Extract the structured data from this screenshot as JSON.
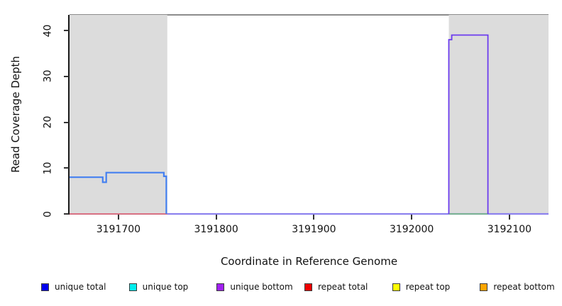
{
  "chart_data": {
    "type": "line",
    "title": "",
    "xlabel": "Coordinate in Reference Genome",
    "ylabel": "Read Coverage Depth",
    "xlim": [
      3191650,
      3192140
    ],
    "ylim": [
      0,
      43.4
    ],
    "x_ticks": [
      3191700,
      3191800,
      3191900,
      3192000,
      3192100
    ],
    "y_ticks": [
      0,
      10,
      20,
      30,
      40
    ],
    "grid": false,
    "legend_position": "bottom",
    "background_color": "#ffffff",
    "shaded_region_color": "#dcdcdc",
    "top_border_color": "#8c8c8c",
    "axis_color": "#1a1a1a",
    "shaded_regions": [
      {
        "name": "left-repeat-region",
        "x0": 3191650,
        "x1": 3191750
      },
      {
        "name": "right-repeat-region",
        "x0": 3192038,
        "x1": 3192140
      }
    ],
    "series": [
      {
        "name": "repeat-total-baseline",
        "color": "#e0566f",
        "width": 1.6,
        "points": [
          [
            3191650,
            0
          ],
          [
            3191750,
            0
          ]
        ]
      },
      {
        "name": "unique-bottom-baseline",
        "color": "#8d82ee",
        "width": 2.2,
        "points": [
          [
            3191750,
            0
          ],
          [
            3192140,
            0
          ]
        ]
      },
      {
        "name": "overlap-baseline-green",
        "color": "#74c474",
        "width": 1.5,
        "points": [
          [
            3192038,
            0
          ],
          [
            3192078,
            0
          ]
        ]
      },
      {
        "name": "unique-bottom-peak",
        "color": "#6b3bee",
        "width": 1.8,
        "points": [
          [
            3192038,
            0
          ],
          [
            3192038,
            38
          ],
          [
            3192041,
            38
          ],
          [
            3192041,
            39
          ],
          [
            3192078,
            39
          ],
          [
            3192078,
            0
          ]
        ]
      },
      {
        "name": "unique-total",
        "color": "#4480f0",
        "width": 2.2,
        "points": [
          [
            3191650,
            8
          ],
          [
            3191684,
            8
          ],
          [
            3191684,
            6.9
          ],
          [
            3191687.5,
            6.9
          ],
          [
            3191687.5,
            9
          ],
          [
            3191746.5,
            9
          ],
          [
            3191746.5,
            8.2
          ],
          [
            3191749,
            8.2
          ],
          [
            3191749,
            0
          ]
        ]
      }
    ],
    "legend": {
      "items": [
        {
          "label": "unique total",
          "color": "#0000ee"
        },
        {
          "label": "unique top",
          "color": "#00eeee"
        },
        {
          "label": "unique bottom",
          "color": "#a020f0"
        },
        {
          "label": "repeat total",
          "color": "#ee0000"
        },
        {
          "label": "repeat top",
          "color": "#ffff00"
        },
        {
          "label": "repeat bottom",
          "color": "#ffa500"
        }
      ]
    }
  }
}
